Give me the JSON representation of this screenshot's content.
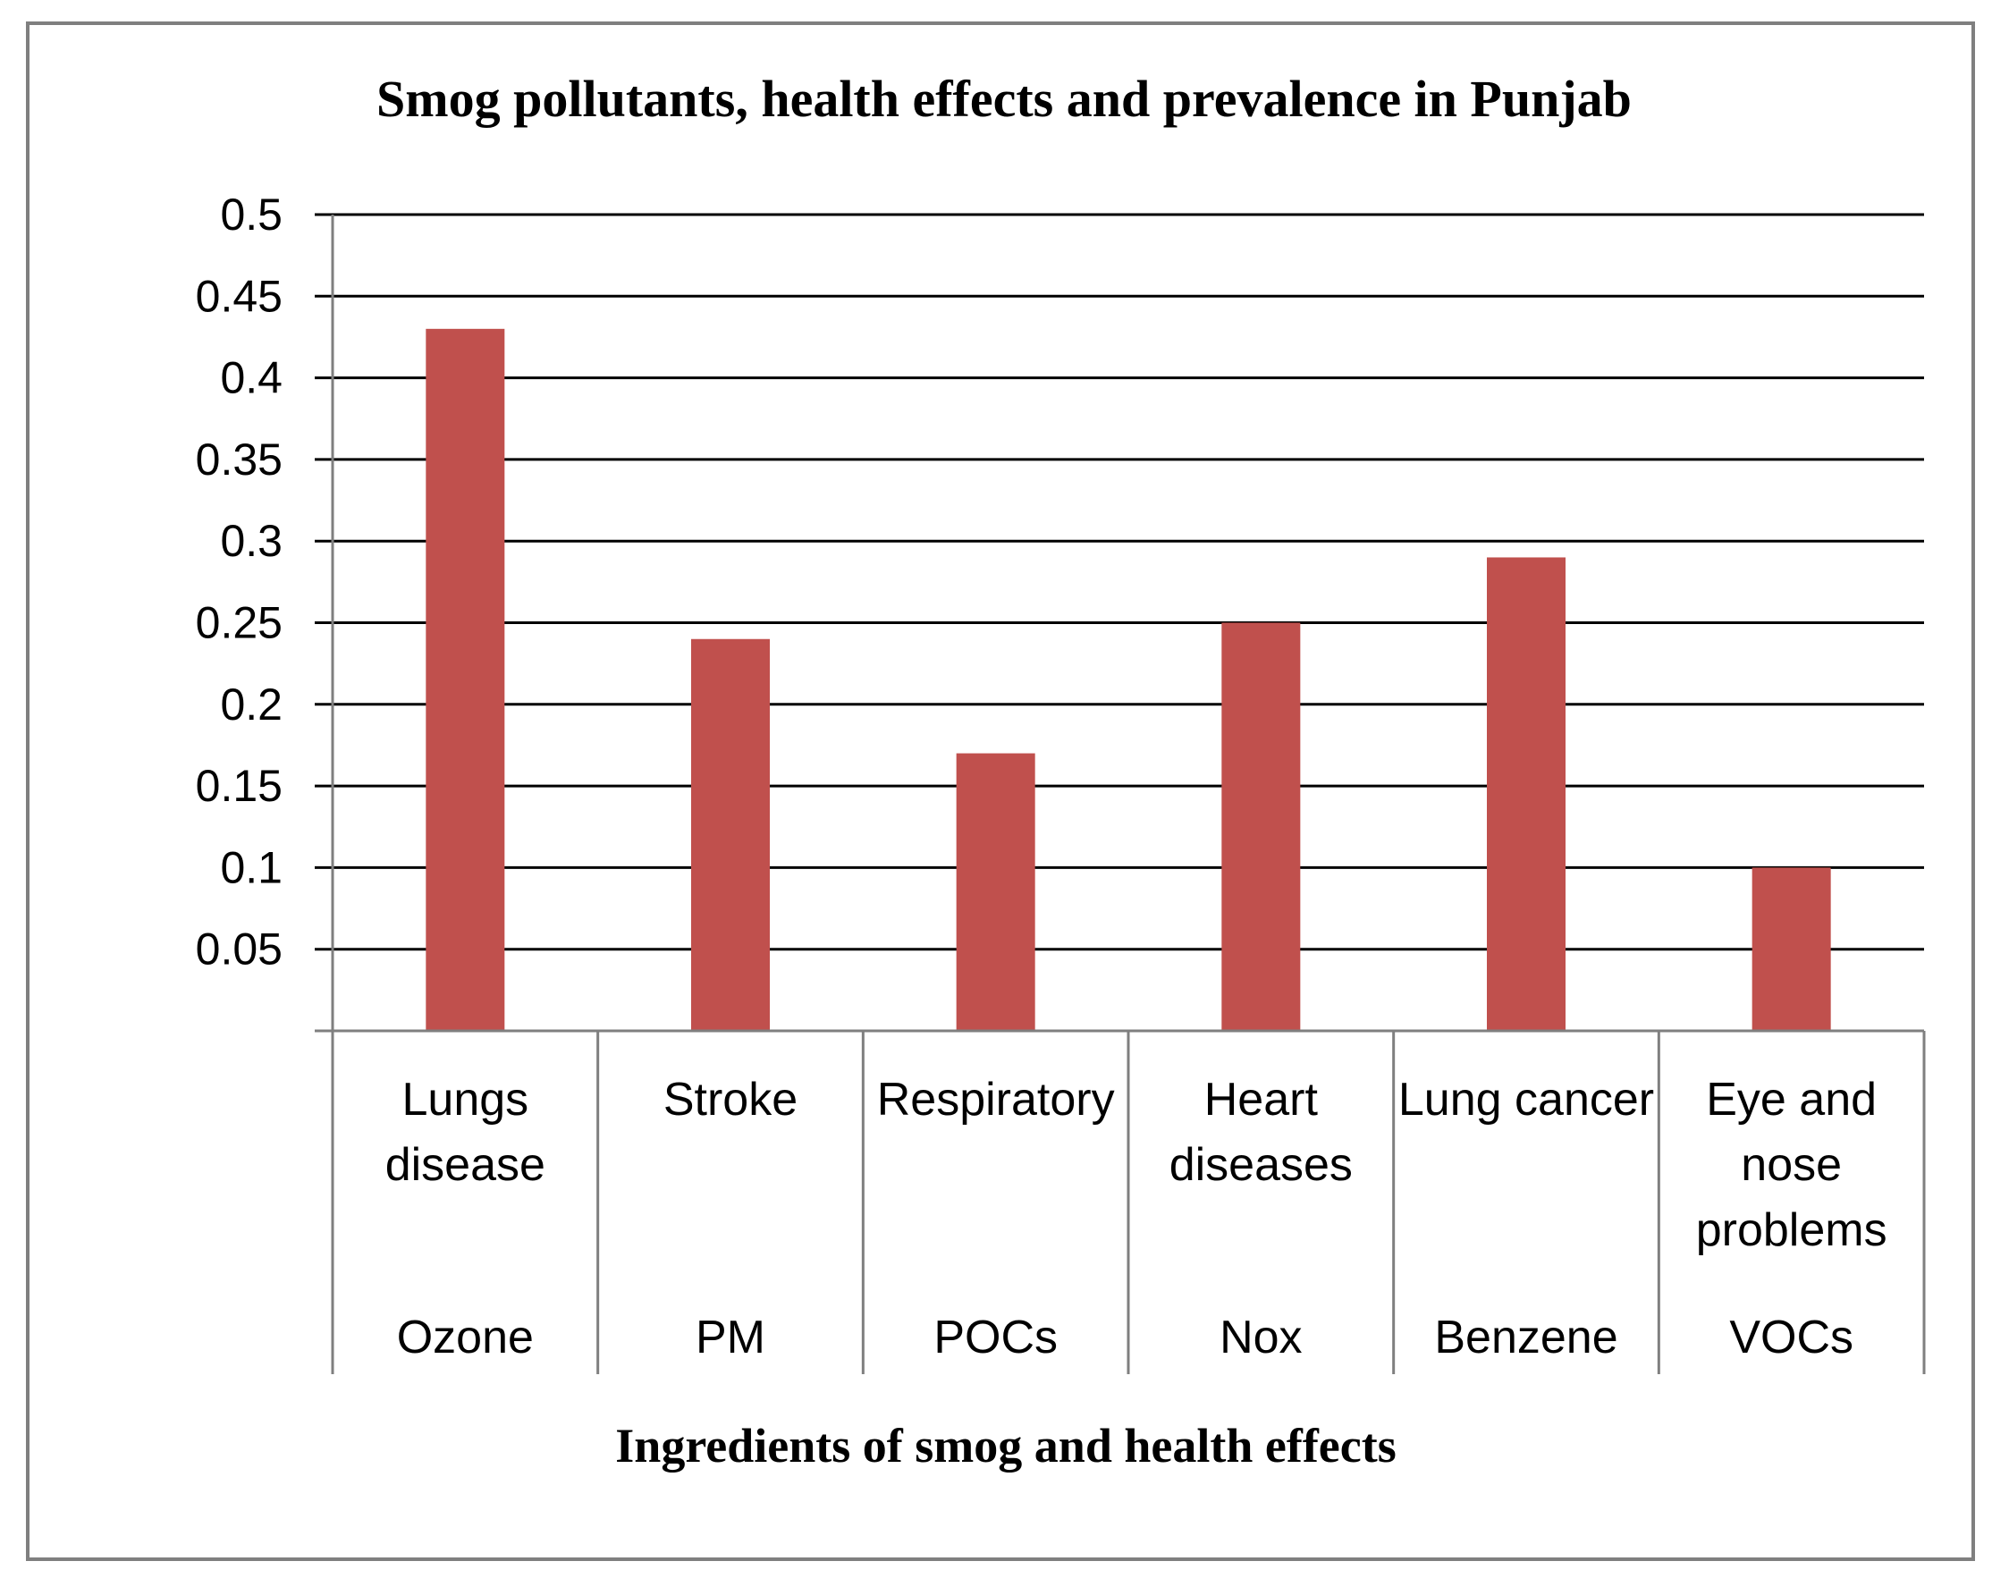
{
  "chart_data": {
    "type": "bar",
    "title": "Smog pollutants, health effects and prevalence in Punjab",
    "xlabel": "Ingredients of smog and health effects",
    "ylabel": "",
    "ylim": [
      0,
      0.5
    ],
    "yticks": [
      "0.05",
      "0.1",
      "0.15",
      "0.2",
      "0.25",
      "0.3",
      "0.35",
      "0.4",
      "0.45",
      "0.5"
    ],
    "grid": true,
    "categories": [
      {
        "effect": "Lungs disease",
        "effect_lines": [
          "Lungs",
          "disease"
        ],
        "pollutant": "Ozone"
      },
      {
        "effect": "Stroke",
        "effect_lines": [
          "Stroke"
        ],
        "pollutant": "PM"
      },
      {
        "effect": "Respiratory",
        "effect_lines": [
          "Respiratory"
        ],
        "pollutant": "POCs"
      },
      {
        "effect": "Heart diseases",
        "effect_lines": [
          "Heart",
          "diseases"
        ],
        "pollutant": "Nox"
      },
      {
        "effect": "Lung cancer",
        "effect_lines": [
          "Lung cancer"
        ],
        "pollutant": "Benzene"
      },
      {
        "effect": "Eye and nose problems",
        "effect_lines": [
          "Eye and",
          "nose",
          "problems"
        ],
        "pollutant": "VOCs"
      }
    ],
    "values": [
      0.43,
      0.24,
      0.17,
      0.25,
      0.29,
      0.1
    ],
    "bar_color": "#c0504d"
  }
}
